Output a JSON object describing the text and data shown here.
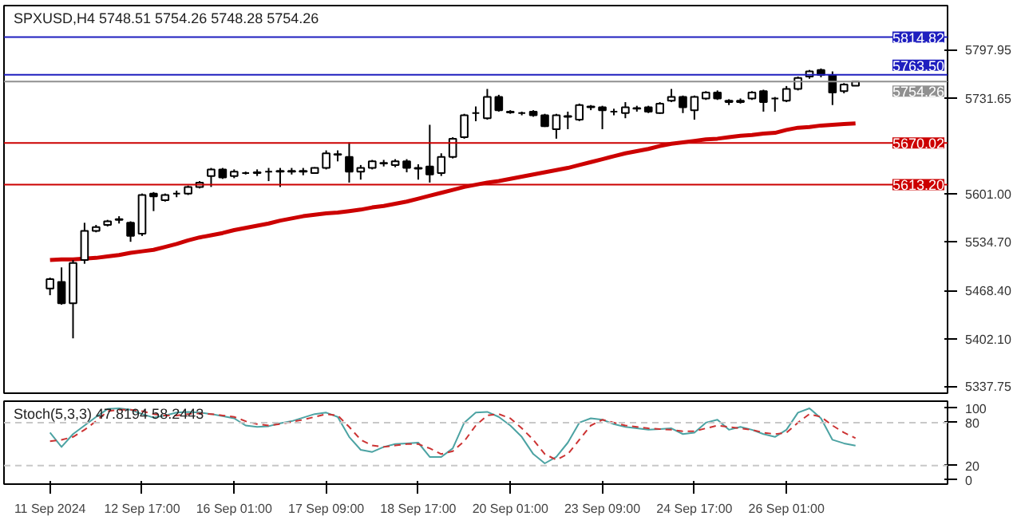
{
  "chart_data": [
    {
      "type": "candlestick",
      "title": "SPXUSD,H4  5748.51 5754.26 5748.28 5754.26",
      "categories": [
        null,
        null,
        null,
        null,
        null,
        null,
        null,
        null,
        null,
        null,
        null,
        null,
        null,
        null,
        null,
        null,
        null,
        null,
        null,
        null,
        null,
        null,
        null,
        null,
        null,
        null,
        null,
        null,
        null,
        null,
        null,
        null,
        null,
        null,
        null,
        null,
        null,
        null,
        null,
        null,
        null,
        null,
        null,
        null,
        null,
        null,
        null,
        null,
        null,
        null,
        null,
        null,
        null,
        null,
        null,
        null,
        null,
        null,
        null,
        null,
        null,
        null,
        null,
        null,
        null,
        null,
        null,
        null,
        null,
        null,
        null
      ],
      "ohlc": [
        [
          5471,
          5486,
          5462,
          5484
        ],
        [
          5480,
          5500,
          5449,
          5451
        ],
        [
          5451,
          5510,
          5403,
          5506
        ],
        [
          5510,
          5561,
          5505,
          5550
        ],
        [
          5550,
          5558,
          5548,
          5555
        ],
        [
          5558,
          5565,
          5556,
          5563
        ],
        [
          5565,
          5570,
          5560,
          5566
        ],
        [
          5561,
          5563,
          5535,
          5543
        ],
        [
          5546,
          5601,
          5543,
          5599
        ],
        [
          5601,
          5603,
          5577,
          5597
        ],
        [
          5592,
          5601,
          5590,
          5599
        ],
        [
          5601,
          5605,
          5596,
          5601
        ],
        [
          5601,
          5612,
          5599,
          5610
        ],
        [
          5610,
          5618,
          5608,
          5616
        ],
        [
          5625,
          5636,
          5610,
          5634
        ],
        [
          5634,
          5636,
          5621,
          5623
        ],
        [
          5625,
          5634,
          5622,
          5631
        ],
        [
          5629,
          5631,
          5627,
          5629
        ],
        [
          5629,
          5634,
          5625,
          5630
        ],
        [
          5631,
          5636,
          5618,
          5631
        ],
        [
          5631,
          5636,
          5610,
          5632
        ],
        [
          5631,
          5636,
          5627,
          5632
        ],
        [
          5631,
          5636,
          5626,
          5632
        ],
        [
          5629,
          5637,
          5628,
          5636
        ],
        [
          5636,
          5660,
          5634,
          5656
        ],
        [
          5654,
          5660,
          5645,
          5655
        ],
        [
          5651,
          5671,
          5616,
          5631
        ],
        [
          5631,
          5640,
          5620,
          5636
        ],
        [
          5636,
          5647,
          5634,
          5645
        ],
        [
          5642,
          5647,
          5638,
          5643
        ],
        [
          5640,
          5648,
          5637,
          5645
        ],
        [
          5645,
          5648,
          5630,
          5636
        ],
        [
          5636,
          5641,
          5620,
          5635
        ],
        [
          5638,
          5695,
          5616,
          5627
        ],
        [
          5629,
          5656,
          5625,
          5651
        ],
        [
          5651,
          5678,
          5649,
          5676
        ],
        [
          5678,
          5710,
          5676,
          5708
        ],
        [
          5711,
          5720,
          5700,
          5711
        ],
        [
          5704,
          5744,
          5702,
          5733
        ],
        [
          5733,
          5736,
          5713,
          5715
        ],
        [
          5713,
          5715,
          5710,
          5712
        ],
        [
          5711,
          5713,
          5708,
          5711
        ],
        [
          5713,
          5715,
          5706,
          5708
        ],
        [
          5708,
          5710,
          5692,
          5693
        ],
        [
          5689,
          5710,
          5676,
          5708
        ],
        [
          5706,
          5713,
          5689,
          5707
        ],
        [
          5702,
          5724,
          5700,
          5722
        ],
        [
          5719,
          5722,
          5715,
          5720
        ],
        [
          5719,
          5721,
          5689,
          5715
        ],
        [
          5713,
          5717,
          5708,
          5713
        ],
        [
          5711,
          5726,
          5704,
          5719
        ],
        [
          5717,
          5721,
          5713,
          5718
        ],
        [
          5719,
          5721,
          5711,
          5713
        ],
        [
          5711,
          5726,
          5710,
          5724
        ],
        [
          5728,
          5744,
          5726,
          5733
        ],
        [
          5733,
          5735,
          5711,
          5719
        ],
        [
          5715,
          5735,
          5702,
          5733
        ],
        [
          5731,
          5741,
          5729,
          5739
        ],
        [
          5739,
          5742,
          5729,
          5731
        ],
        [
          5728,
          5730,
          5722,
          5726
        ],
        [
          5726,
          5731,
          5724,
          5728
        ],
        [
          5731,
          5741,
          5729,
          5739
        ],
        [
          5741,
          5743,
          5713,
          5726
        ],
        [
          5731,
          5733,
          5713,
          5731
        ],
        [
          5728,
          5748,
          5726,
          5744
        ],
        [
          5744,
          5761,
          5742,
          5759
        ],
        [
          5761,
          5770,
          5758,
          5768
        ],
        [
          5770,
          5772,
          5760,
          5763
        ],
        [
          5763,
          5768,
          5722,
          5739
        ],
        [
          5741,
          5752,
          5738,
          5750
        ],
        [
          5748.51,
          5754.26,
          5748.28,
          5754.26
        ]
      ],
      "series": [
        {
          "type": "line",
          "color": "#cc0000",
          "values": [
            5510,
            5511,
            5511,
            5512,
            5513,
            5515,
            5517,
            5520,
            5522,
            5524,
            5528,
            5532,
            5537,
            5541,
            5544,
            5547,
            5551,
            5554,
            5557,
            5560,
            5564,
            5567,
            5570,
            5572,
            5574,
            5575,
            5577,
            5579,
            5582,
            5584,
            5587,
            5590,
            5594,
            5598,
            5602,
            5606,
            5610,
            5613,
            5616,
            5618,
            5621,
            5624,
            5627,
            5630,
            5633,
            5636,
            5640,
            5644,
            5648,
            5652,
            5656,
            5659,
            5662,
            5666,
            5669,
            5671,
            5673,
            5675,
            5676,
            5678,
            5680,
            5681,
            5683,
            5684,
            5688,
            5691,
            5692,
            5694,
            5695,
            5696,
            5697
          ]
        }
      ],
      "ylim": [
        5328,
        5858
      ],
      "yticks": [
        5337.75,
        {
          "value": 5402.1,
          "label": "5402.10"
        },
        {
          "value": 5468.4,
          "label": "5468.40"
        },
        {
          "value": 5534.7,
          "label": "5534.70"
        },
        {
          "value": 5601,
          "label": "5601.00"
        },
        5731.65,
        5797.95
      ],
      "ref_lines": [
        {
          "axis": "y",
          "value": 5814.82,
          "label": "5814.82",
          "color": "#1f1fbf"
        },
        {
          "axis": "y",
          "value": 5763.5,
          "label": "5763.50",
          "color": "#1f1fbf"
        },
        {
          "axis": "y",
          "value": 5754.26,
          "label": "5754.26",
          "color": "#909090"
        },
        {
          "axis": "y",
          "value": 5670.02,
          "label": "5670.02",
          "color": "#cc0000"
        },
        {
          "axis": "y",
          "value": 5613.2,
          "label": "5613.20",
          "color": "#cc0000"
        }
      ],
      "tick_labels": "y",
      "grid": false
    },
    {
      "type": "line",
      "title": "Stoch(5,3,3) 47.8194 58.2443",
      "categories": [
        "11 Sep 2024",
        null,
        null,
        null,
        null,
        null,
        null,
        null,
        "12 Sep 17:00",
        null,
        null,
        null,
        null,
        null,
        null,
        null,
        "16 Sep 01:00",
        null,
        null,
        null,
        null,
        null,
        null,
        null,
        "17 Sep 09:00",
        null,
        null,
        null,
        null,
        null,
        null,
        null,
        "18 Sep 17:00",
        null,
        null,
        null,
        null,
        null,
        null,
        null,
        "20 Sep 01:00",
        null,
        null,
        null,
        null,
        null,
        null,
        null,
        "23 Sep 09:00",
        null,
        null,
        null,
        null,
        null,
        null,
        null,
        "24 Sep 17:00",
        null,
        null,
        null,
        null,
        null,
        null,
        null,
        "26 Sep 01:00",
        null,
        null,
        null,
        null,
        null,
        null
      ],
      "series": [
        {
          "color": "#4ca3a3",
          "line_style": "solid",
          "values": [
            66,
            46,
            64,
            76,
            88,
            99,
            100,
            98,
            92,
            87,
            90,
            94,
            95,
            94,
            92,
            89,
            86,
            76,
            74,
            75,
            79,
            82,
            87,
            92,
            94,
            88,
            60,
            42,
            39,
            46,
            50,
            51,
            52,
            32,
            32,
            44,
            80,
            94,
            95,
            88,
            76,
            60,
            36,
            23,
            32,
            52,
            80,
            86,
            84,
            78,
            74,
            72,
            70,
            71,
            72,
            64,
            66,
            80,
            84,
            70,
            74,
            70,
            64,
            60,
            70,
            94,
            100,
            86,
            56,
            51,
            47.8194
          ]
        },
        {
          "color": "#cc3333",
          "line_style": "dashed",
          "values": [
            54,
            56,
            60,
            70,
            82,
            96,
            98,
            98,
            96,
            92,
            90,
            90,
            92,
            93,
            92,
            90,
            88,
            82,
            78,
            76,
            78,
            81,
            84,
            88,
            92,
            90,
            74,
            56,
            48,
            46,
            48,
            50,
            50,
            44,
            36,
            40,
            54,
            76,
            90,
            92,
            86,
            72,
            56,
            36,
            28,
            36,
            56,
            76,
            84,
            80,
            76,
            74,
            72,
            71,
            70,
            68,
            68,
            72,
            76,
            74,
            72,
            70,
            66,
            64,
            66,
            80,
            92,
            88,
            76,
            66,
            58.2443
          ]
        }
      ],
      "ylim": [
        -6,
        110
      ],
      "yticks": [
        0,
        20,
        80,
        100
      ],
      "ref_lines": [
        {
          "axis": "y",
          "value": 80,
          "color": "#c8c8c8",
          "line_style": "dashed"
        },
        {
          "axis": "y",
          "value": 20,
          "color": "#c8c8c8",
          "line_style": "dashed"
        }
      ],
      "grid": false
    }
  ]
}
